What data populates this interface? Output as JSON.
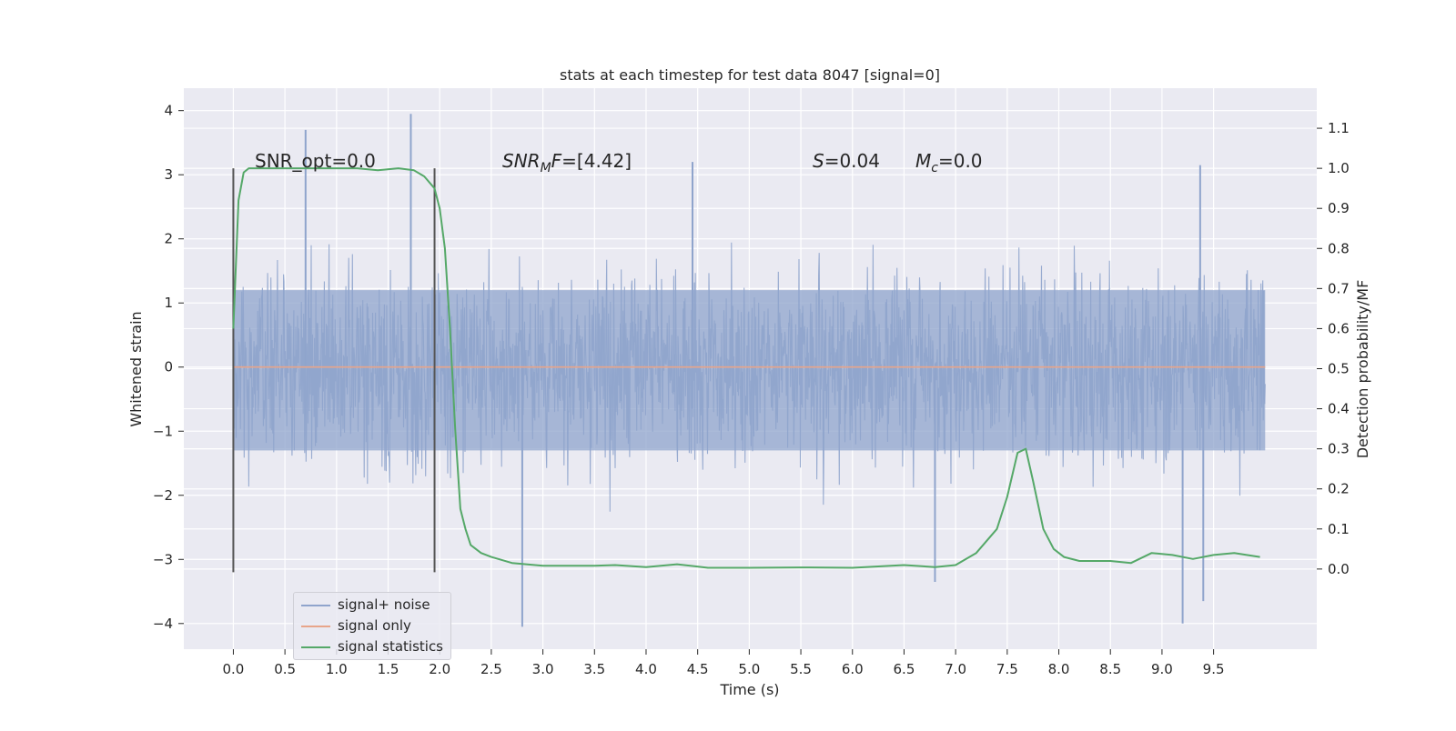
{
  "chart_data": {
    "type": "line",
    "title": "stats at each timestep for test data 8047 [signal=0]",
    "xlabel": "Time (s)",
    "ylabel": "Whitened strain",
    "y2label": "Detection probability/MF",
    "xlim": [
      -0.48,
      10.5
    ],
    "ylim": [
      -4.4,
      4.35
    ],
    "y2lim": [
      -0.2,
      1.2
    ],
    "xticks": [
      "0.0",
      "0.5",
      "1.0",
      "1.5",
      "2.0",
      "2.5",
      "3.0",
      "3.5",
      "4.0",
      "4.5",
      "5.0",
      "5.5",
      "6.0",
      "6.5",
      "7.0",
      "7.5",
      "8.0",
      "8.5",
      "9.0",
      "9.5"
    ],
    "yticks": [
      "4",
      "3",
      "2",
      "1",
      "0",
      "−1",
      "−2",
      "−3",
      "−4"
    ],
    "y2ticks": [
      "1.1",
      "1.0",
      "0.9",
      "0.8",
      "0.7",
      "0.6",
      "0.5",
      "0.4",
      "0.3",
      "0.2",
      "0.1",
      "0.0"
    ],
    "annotations": {
      "snr_opt": "SNR_opt=0.0",
      "snr_mf_sym": "SNR",
      "snr_mf_sub": "M",
      "snr_mf_sym2": "F",
      "snr_mf_val": "=[4.42]",
      "s_sym": "S",
      "s_val": "=0.04",
      "mc_sym": "M",
      "mc_sub": "c",
      "mc_val": "=0.0"
    },
    "vlines": [
      0.0,
      1.95
    ],
    "grid": true,
    "legend_position": "lower-left",
    "series": [
      {
        "name": "signal+ noise",
        "color": "#8fa4cc",
        "noise_envelope": [
          -1.3,
          1.2
        ],
        "x_range": [
          0.0,
          10.0
        ]
      },
      {
        "name": "signal only",
        "color": "#e8a58a",
        "values_constant": 0.0,
        "x_range": [
          0.0,
          10.0
        ]
      },
      {
        "name": "signal statistics",
        "color": "#55a868",
        "axis": "right",
        "x": [
          0.0,
          0.05,
          0.1,
          0.15,
          0.2,
          0.3,
          0.5,
          0.8,
          1.0,
          1.2,
          1.4,
          1.6,
          1.75,
          1.85,
          1.95,
          2.0,
          2.05,
          2.1,
          2.15,
          2.2,
          2.25,
          2.3,
          2.4,
          2.5,
          2.7,
          3.0,
          3.5,
          3.7,
          4.0,
          4.3,
          4.6,
          5.0,
          5.5,
          6.0,
          6.5,
          6.8,
          7.0,
          7.2,
          7.4,
          7.5,
          7.6,
          7.68,
          7.75,
          7.85,
          7.95,
          8.05,
          8.2,
          8.5,
          8.7,
          8.9,
          9.1,
          9.3,
          9.5,
          9.7,
          9.95
        ],
        "values": [
          0.6,
          0.92,
          0.99,
          1.0,
          1.0,
          1.0,
          1.0,
          1.0,
          1.0,
          1.0,
          0.995,
          1.0,
          0.995,
          0.98,
          0.95,
          0.9,
          0.8,
          0.6,
          0.35,
          0.15,
          0.1,
          0.06,
          0.04,
          0.03,
          0.015,
          0.008,
          0.008,
          0.01,
          0.005,
          0.012,
          0.003,
          0.003,
          0.004,
          0.003,
          0.01,
          0.005,
          0.01,
          0.04,
          0.1,
          0.18,
          0.29,
          0.3,
          0.22,
          0.1,
          0.05,
          0.03,
          0.02,
          0.02,
          0.015,
          0.04,
          0.035,
          0.025,
          0.035,
          0.04,
          0.03
        ]
      }
    ],
    "notable_spikes": [
      {
        "x": 0.7,
        "y": 3.7
      },
      {
        "x": 1.72,
        "y": 3.95
      },
      {
        "x": 2.8,
        "y": -4.05
      },
      {
        "x": 4.45,
        "y": 3.2
      },
      {
        "x": 6.8,
        "y": -3.35
      },
      {
        "x": 9.2,
        "y": -4.0
      },
      {
        "x": 9.37,
        "y": 3.15
      },
      {
        "x": 9.4,
        "y": -3.65
      }
    ]
  }
}
